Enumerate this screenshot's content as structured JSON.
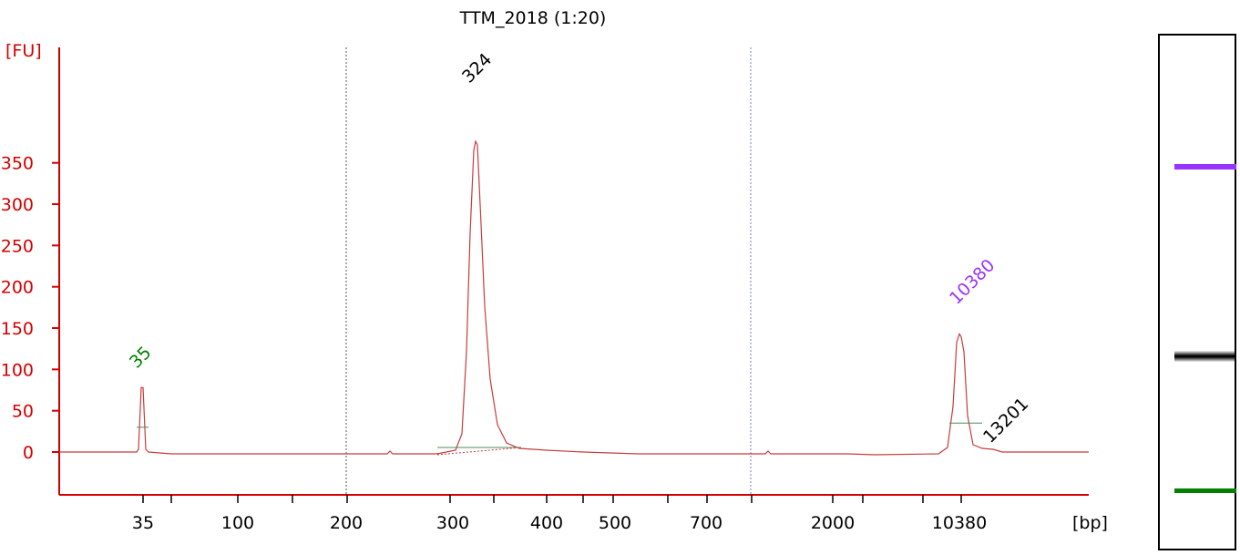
{
  "chart_data": {
    "type": "line",
    "title": "TTM_2018 (1:20)",
    "ylabel": "[FU]",
    "xlabel": "[bp]",
    "ylim": [
      -45,
      400
    ],
    "yticks": [
      0,
      50,
      100,
      150,
      200,
      250,
      300,
      350
    ],
    "xticks": [
      "35",
      "100",
      "200",
      "300",
      "400",
      "500",
      "700",
      "2000",
      "10380"
    ],
    "grid": false,
    "series": [
      {
        "color": "#c83c3c",
        "x": [
          "35",
          "324",
          "10380",
          "13201"
        ],
        "values": [
          78,
          376,
          143,
          3
        ]
      }
    ],
    "peaks": [
      {
        "label": "35",
        "value": 78,
        "color": "#008000"
      },
      {
        "label": "324",
        "value": 376,
        "color": "#000000"
      },
      {
        "label": "10380",
        "value": 143,
        "color": "#9933ff"
      },
      {
        "label": "13201",
        "value": 3,
        "color": "#000000"
      }
    ],
    "gel_bands": [
      {
        "name": "upper-marker",
        "color": "#9933ff"
      },
      {
        "name": "sample",
        "color": "#000000"
      },
      {
        "name": "lower-marker",
        "color": "#008000"
      }
    ]
  }
}
